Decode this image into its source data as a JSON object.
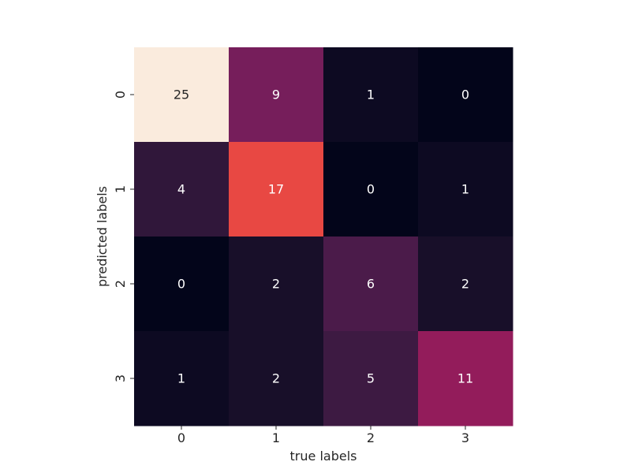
{
  "chart_data": {
    "type": "heatmap",
    "title": "",
    "xlabel": "true labels",
    "ylabel": "predicted labels",
    "x_categories": [
      "0",
      "1",
      "2",
      "3"
    ],
    "y_categories": [
      "0",
      "1",
      "2",
      "3"
    ],
    "values": [
      [
        25,
        9,
        1,
        0
      ],
      [
        4,
        17,
        0,
        1
      ],
      [
        0,
        2,
        6,
        2
      ],
      [
        1,
        2,
        5,
        11
      ]
    ],
    "value_range": [
      0,
      25
    ],
    "colormap": "rocket",
    "colorbar": false,
    "annotations": true,
    "grid": false
  }
}
